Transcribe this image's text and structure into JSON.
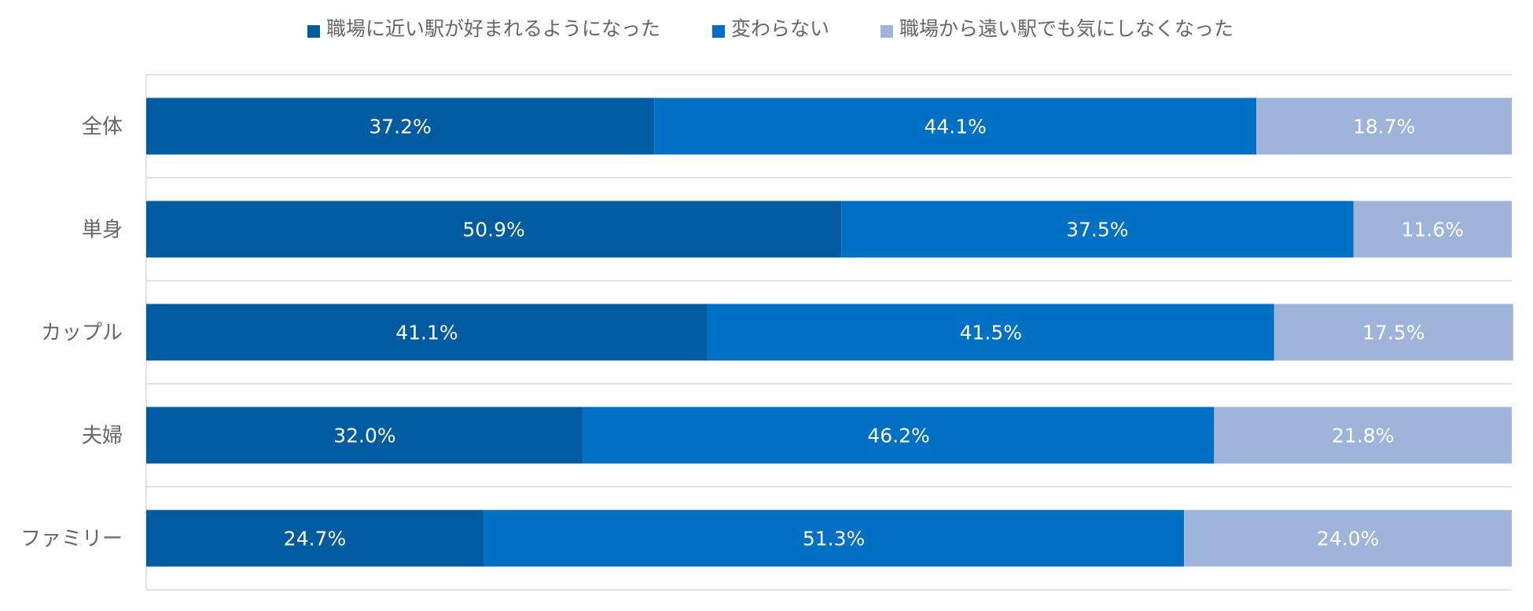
{
  "chart_data": {
    "type": "bar",
    "orientation": "horizontal",
    "stacked": "percent",
    "title": "",
    "xlabel": "",
    "ylabel": "",
    "xlim": [
      0,
      100
    ],
    "legend_position": "top",
    "categories": [
      "全体",
      "単身",
      "カップル",
      "夫婦",
      "ファミリー"
    ],
    "series": [
      {
        "name": "職場に近い駅が好まれるようになった",
        "color": "#005BA0",
        "values": [
          37.2,
          50.9,
          41.1,
          32.0,
          24.7
        ],
        "labels": [
          "37.2%",
          "50.9%",
          "41.1%",
          "32.0%",
          "24.7%"
        ]
      },
      {
        "name": "変わらない",
        "color": "#0070C4",
        "values": [
          44.1,
          37.5,
          41.5,
          46.2,
          51.3
        ],
        "labels": [
          "44.1%",
          "37.5%",
          "41.5%",
          "46.2%",
          "51.3%"
        ]
      },
      {
        "name": "職場から遠い駅でも気にしなくなった",
        "color": "#9FB4DA",
        "values": [
          18.7,
          11.6,
          17.5,
          21.8,
          24.0
        ],
        "labels": [
          "18.7%",
          "11.6%",
          "17.5%",
          "21.8%",
          "24.0%"
        ]
      }
    ]
  }
}
